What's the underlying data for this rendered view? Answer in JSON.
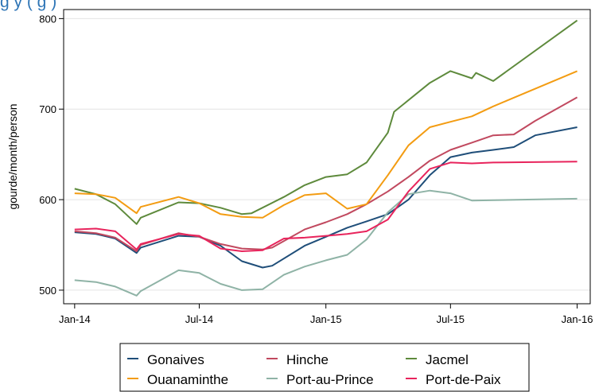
{
  "header": {
    "title_fragment": "g                    y                                       (           g          )"
  },
  "chart_data": {
    "type": "line",
    "title": "",
    "xlabel": "",
    "ylabel": "gourde/month/person",
    "ylim": [
      485,
      810
    ],
    "xlim": [
      "2013-12-16",
      "2016-01-20"
    ],
    "grid": {
      "y": true,
      "x": false
    },
    "legend_position": "bottom",
    "yticks": [
      {
        "value": 500,
        "label": "500"
      },
      {
        "value": 600,
        "label": "600"
      },
      {
        "value": 700,
        "label": "700"
      },
      {
        "value": 800,
        "label": "800"
      }
    ],
    "xticks": [
      {
        "value": "2014-01-01",
        "label": "Jan-14"
      },
      {
        "value": "2014-07-01",
        "label": "Jul-14"
      },
      {
        "value": "2015-01-01",
        "label": "Jan-15"
      },
      {
        "value": "2015-07-01",
        "label": "Jul-15"
      },
      {
        "value": "2016-01-01",
        "label": "Jan-16"
      }
    ],
    "series": [
      {
        "name": "Gonaives",
        "color": "#1f4e79",
        "points": [
          [
            "2014-01-01",
            564
          ],
          [
            "2014-02-01",
            562
          ],
          [
            "2014-03-01",
            557
          ],
          [
            "2014-04-01",
            541
          ],
          [
            "2014-04-07",
            547
          ],
          [
            "2014-06-01",
            560
          ],
          [
            "2014-07-01",
            559
          ],
          [
            "2014-08-01",
            549
          ],
          [
            "2014-09-01",
            532
          ],
          [
            "2014-10-01",
            525
          ],
          [
            "2014-10-15",
            527
          ],
          [
            "2014-12-01",
            549
          ],
          [
            "2015-01-01",
            559
          ],
          [
            "2015-02-01",
            569
          ],
          [
            "2015-03-01",
            576
          ],
          [
            "2015-04-01",
            584
          ],
          [
            "2015-05-01",
            600
          ],
          [
            "2015-06-01",
            627
          ],
          [
            "2015-07-01",
            647
          ],
          [
            "2015-08-01",
            652
          ],
          [
            "2015-09-01",
            655
          ],
          [
            "2015-10-01",
            658
          ],
          [
            "2015-11-01",
            671
          ],
          [
            "2016-01-01",
            680
          ]
        ]
      },
      {
        "name": "Hinche",
        "color": "#c1495f",
        "points": [
          [
            "2014-01-01",
            565
          ],
          [
            "2014-02-01",
            563
          ],
          [
            "2014-03-01",
            558
          ],
          [
            "2014-04-01",
            543
          ],
          [
            "2014-04-07",
            550
          ],
          [
            "2014-06-01",
            563
          ],
          [
            "2014-07-01",
            559
          ],
          [
            "2014-08-01",
            551
          ],
          [
            "2014-09-01",
            546
          ],
          [
            "2014-10-01",
            545
          ],
          [
            "2014-10-15",
            547
          ],
          [
            "2014-12-01",
            567
          ],
          [
            "2015-01-01",
            575
          ],
          [
            "2015-02-01",
            584
          ],
          [
            "2015-03-01",
            595
          ],
          [
            "2015-04-01",
            609
          ],
          [
            "2015-05-01",
            625
          ],
          [
            "2015-06-01",
            643
          ],
          [
            "2015-07-01",
            655
          ],
          [
            "2015-08-01",
            663
          ],
          [
            "2015-09-01",
            671
          ],
          [
            "2015-10-01",
            672
          ],
          [
            "2015-11-01",
            687
          ],
          [
            "2016-01-01",
            713
          ]
        ]
      },
      {
        "name": "Jacmel",
        "color": "#5e8a3c",
        "points": [
          [
            "2014-01-01",
            612
          ],
          [
            "2014-02-01",
            606
          ],
          [
            "2014-03-01",
            595
          ],
          [
            "2014-04-01",
            573
          ],
          [
            "2014-04-07",
            580
          ],
          [
            "2014-06-01",
            597
          ],
          [
            "2014-07-01",
            596
          ],
          [
            "2014-08-01",
            591
          ],
          [
            "2014-09-01",
            584
          ],
          [
            "2014-09-15",
            585
          ],
          [
            "2014-11-01",
            603
          ],
          [
            "2014-12-01",
            616
          ],
          [
            "2015-01-01",
            625
          ],
          [
            "2015-02-01",
            628
          ],
          [
            "2015-03-01",
            641
          ],
          [
            "2015-04-01",
            674
          ],
          [
            "2015-04-10",
            697
          ],
          [
            "2015-06-01",
            729
          ],
          [
            "2015-07-01",
            742
          ],
          [
            "2015-08-01",
            734
          ],
          [
            "2015-08-07",
            740
          ],
          [
            "2015-09-01",
            731
          ],
          [
            "2016-01-01",
            798
          ]
        ]
      },
      {
        "name": "Ouanaminthe",
        "color": "#f39c12",
        "points": [
          [
            "2014-01-01",
            607
          ],
          [
            "2014-02-01",
            606
          ],
          [
            "2014-03-01",
            602
          ],
          [
            "2014-04-01",
            585
          ],
          [
            "2014-04-07",
            592
          ],
          [
            "2014-06-01",
            603
          ],
          [
            "2014-07-01",
            596
          ],
          [
            "2014-08-01",
            584
          ],
          [
            "2014-09-01",
            581
          ],
          [
            "2014-10-01",
            580
          ],
          [
            "2014-11-01",
            594
          ],
          [
            "2014-12-01",
            605
          ],
          [
            "2015-01-01",
            607
          ],
          [
            "2015-02-01",
            590
          ],
          [
            "2015-03-01",
            595
          ],
          [
            "2015-04-01",
            627
          ],
          [
            "2015-05-01",
            660
          ],
          [
            "2015-06-01",
            680
          ],
          [
            "2015-07-01",
            686
          ],
          [
            "2015-08-01",
            692
          ],
          [
            "2015-09-01",
            703
          ],
          [
            "2016-01-01",
            742
          ]
        ]
      },
      {
        "name": "Port-au-Prince",
        "color": "#8fb3a6",
        "points": [
          [
            "2014-01-01",
            511
          ],
          [
            "2014-02-01",
            509
          ],
          [
            "2014-03-01",
            504
          ],
          [
            "2014-04-01",
            494
          ],
          [
            "2014-04-07",
            499
          ],
          [
            "2014-06-01",
            522
          ],
          [
            "2014-07-01",
            519
          ],
          [
            "2014-08-01",
            507
          ],
          [
            "2014-09-01",
            500
          ],
          [
            "2014-10-01",
            501
          ],
          [
            "2014-11-01",
            517
          ],
          [
            "2014-12-01",
            526
          ],
          [
            "2015-01-01",
            533
          ],
          [
            "2015-02-01",
            539
          ],
          [
            "2015-03-01",
            556
          ],
          [
            "2015-04-01",
            586
          ],
          [
            "2015-05-01",
            606
          ],
          [
            "2015-06-01",
            610
          ],
          [
            "2015-07-01",
            607
          ],
          [
            "2015-08-01",
            599
          ],
          [
            "2016-01-01",
            601
          ]
        ]
      },
      {
        "name": "Port-de-Paix",
        "color": "#e8245c",
        "points": [
          [
            "2014-01-01",
            567
          ],
          [
            "2014-02-01",
            568
          ],
          [
            "2014-03-01",
            565
          ],
          [
            "2014-04-01",
            545
          ],
          [
            "2014-04-07",
            551
          ],
          [
            "2014-06-01",
            562
          ],
          [
            "2014-07-01",
            560
          ],
          [
            "2014-08-01",
            546
          ],
          [
            "2014-09-01",
            543
          ],
          [
            "2014-10-01",
            544
          ],
          [
            "2014-11-01",
            557
          ],
          [
            "2014-12-01",
            558
          ],
          [
            "2015-01-01",
            560
          ],
          [
            "2015-02-01",
            562
          ],
          [
            "2015-03-01",
            565
          ],
          [
            "2015-04-01",
            578
          ],
          [
            "2015-05-01",
            609
          ],
          [
            "2015-06-01",
            634
          ],
          [
            "2015-07-01",
            641
          ],
          [
            "2015-08-01",
            640
          ],
          [
            "2015-09-01",
            641
          ],
          [
            "2016-01-01",
            642
          ]
        ]
      }
    ]
  }
}
